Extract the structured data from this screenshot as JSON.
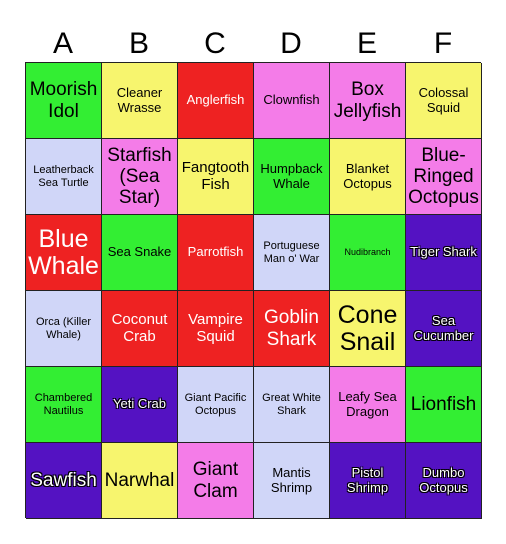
{
  "columns": [
    "A",
    "B",
    "C",
    "D",
    "E",
    "F"
  ],
  "colors": {
    "green": "#33ee33",
    "yellow": "#f7f56e",
    "red": "#ee2222",
    "pink": "#f47ce8",
    "lavender": "#d0d6f8",
    "purple": "#5412c2"
  },
  "cells": [
    [
      "Moorish Idol",
      "Cleaner Wrasse",
      "Anglerfish",
      "Clownfish",
      "Box Jellyfish",
      "Colossal Squid"
    ],
    [
      "Leatherback Sea Turtle",
      "Starfish (Sea Star)",
      "Fangtooth Fish",
      "Humpback Whale",
      "Blanket Octopus",
      "Blue-Ringed Octopus"
    ],
    [
      "Blue Whale",
      "Sea Snake",
      "Parrotfish",
      "Portuguese Man o' War",
      "Nudibranch",
      "Tiger Shark"
    ],
    [
      "Orca (Killer Whale)",
      "Coconut Crab",
      "Vampire Squid",
      "Goblin Shark",
      "Cone Snail",
      "Sea Cucumber"
    ],
    [
      "Chambered Nautilus",
      "Yeti Crab",
      "Giant Pacific Octopus",
      "Great White Shark",
      "Leafy Sea Dragon",
      "Lionfish"
    ],
    [
      "Sawfish",
      "Narwhal",
      "Giant Clam",
      "Mantis Shrimp",
      "Pistol Shrimp",
      "Dumbo Octopus"
    ]
  ]
}
